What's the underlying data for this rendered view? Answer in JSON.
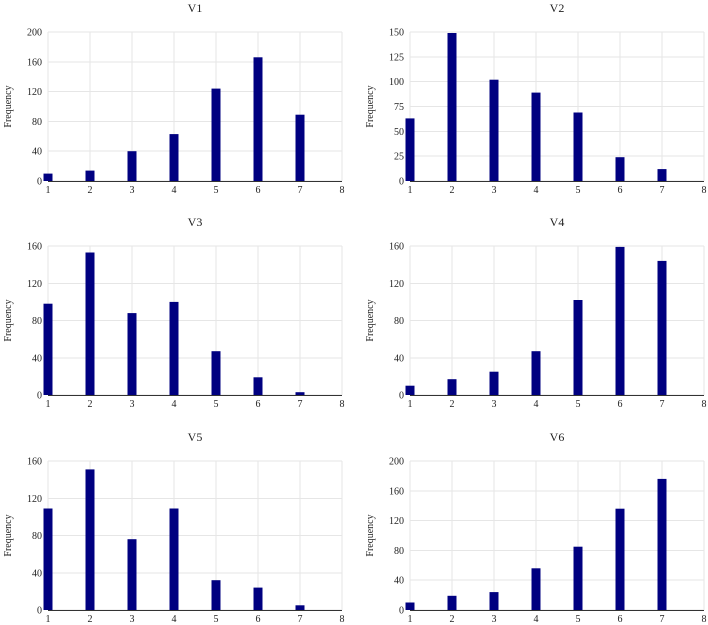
{
  "figure": {
    "bar_color": "#000080",
    "grid_color": "#e6e6e6"
  },
  "chart_data": [
    {
      "type": "bar",
      "title": "V1",
      "xlabel": "",
      "ylabel": "Frequency",
      "x": [
        1,
        2,
        3,
        4,
        5,
        6,
        7
      ],
      "values": [
        10,
        14,
        40,
        63,
        124,
        166,
        89
      ],
      "xlim": [
        1,
        8
      ],
      "xticks": [
        1,
        2,
        3,
        4,
        5,
        6,
        7,
        8
      ],
      "ylim": [
        0,
        200
      ],
      "yticks": [
        0,
        40,
        80,
        120,
        160,
        200
      ],
      "grid": true
    },
    {
      "type": "bar",
      "title": "V2",
      "xlabel": "",
      "ylabel": "Frequency",
      "x": [
        1,
        2,
        3,
        4,
        5,
        6,
        7
      ],
      "values": [
        63,
        149,
        102,
        89,
        69,
        24,
        12
      ],
      "xlim": [
        1,
        8
      ],
      "xticks": [
        1,
        2,
        3,
        4,
        5,
        6,
        7,
        8
      ],
      "ylim": [
        0,
        150
      ],
      "yticks": [
        0,
        25,
        50,
        75,
        100,
        125,
        150
      ],
      "grid": true
    },
    {
      "type": "bar",
      "title": "V3",
      "xlabel": "",
      "ylabel": "Frequency",
      "x": [
        1,
        2,
        3,
        4,
        5,
        6,
        7
      ],
      "values": [
        98,
        153,
        88,
        100,
        47,
        19,
        3
      ],
      "xlim": [
        1,
        8
      ],
      "xticks": [
        1,
        2,
        3,
        4,
        5,
        6,
        7,
        8
      ],
      "ylim": [
        0,
        160
      ],
      "yticks": [
        0,
        40,
        80,
        120,
        160
      ],
      "grid": true
    },
    {
      "type": "bar",
      "title": "V4",
      "xlabel": "",
      "ylabel": "Frequency",
      "x": [
        1,
        2,
        3,
        4,
        5,
        6,
        7
      ],
      "values": [
        10,
        17,
        25,
        47,
        102,
        159,
        144
      ],
      "xlim": [
        1,
        8
      ],
      "xticks": [
        1,
        2,
        3,
        4,
        5,
        6,
        7,
        8
      ],
      "ylim": [
        0,
        160
      ],
      "yticks": [
        0,
        40,
        80,
        120,
        160
      ],
      "grid": true
    },
    {
      "type": "bar",
      "title": "V5",
      "xlabel": "",
      "ylabel": "Frequency",
      "x": [
        1,
        2,
        3,
        4,
        5,
        6,
        7
      ],
      "values": [
        109,
        151,
        76,
        109,
        32,
        24,
        5
      ],
      "xlim": [
        1,
        8
      ],
      "xticks": [
        1,
        2,
        3,
        4,
        5,
        6,
        7,
        8
      ],
      "ylim": [
        0,
        160
      ],
      "yticks": [
        0,
        40,
        80,
        120,
        160
      ],
      "grid": true
    },
    {
      "type": "bar",
      "title": "V6",
      "xlabel": "",
      "ylabel": "Frequency",
      "x": [
        1,
        2,
        3,
        4,
        5,
        6,
        7
      ],
      "values": [
        10,
        19,
        24,
        56,
        85,
        136,
        176
      ],
      "xlim": [
        1,
        8
      ],
      "xticks": [
        1,
        2,
        3,
        4,
        5,
        6,
        7,
        8
      ],
      "ylim": [
        0,
        200
      ],
      "yticks": [
        0,
        40,
        80,
        120,
        160,
        200
      ],
      "grid": true
    }
  ]
}
